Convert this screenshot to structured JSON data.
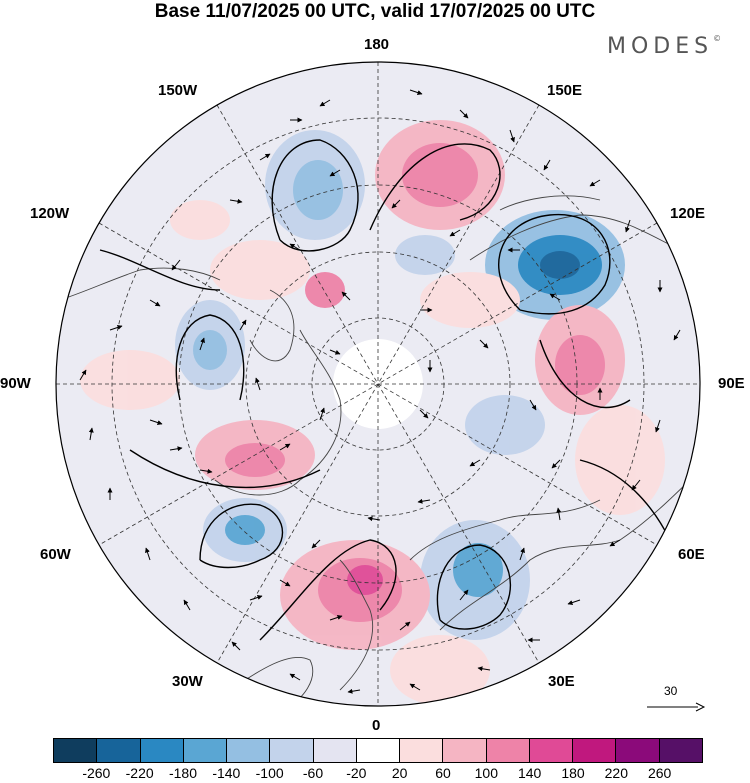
{
  "title": "Base 11/07/2025 00 UTC, valid 17/07/2025 00 UTC",
  "logo": "MODES",
  "logo_mark": "©",
  "longitude_labels": {
    "top": "180",
    "bottom": "0",
    "left": "90W",
    "right": "90E",
    "upper_left_1": "150W",
    "upper_left_2": "120W",
    "upper_right_1": "150E",
    "upper_right_2": "120E",
    "lower_left_1": "60W",
    "lower_left_2": "30W",
    "lower_right_1": "60E",
    "lower_right_2": "30E"
  },
  "vector_scale": {
    "label": "30"
  },
  "colorbar": {
    "colors": [
      "#0f3d5e",
      "#17649a",
      "#2a88c2",
      "#5aa6d3",
      "#94bfe2",
      "#c3d3eb",
      "#e4e4f1",
      "#ffffff",
      "#fbdede",
      "#f5b5c3",
      "#ee83a8",
      "#e04a96",
      "#c0187e",
      "#8b0a7a",
      "#561067"
    ],
    "ticks": [
      "-260",
      "-220",
      "-180",
      "-140",
      "-100",
      "-60",
      "-20",
      "20",
      "60",
      "100",
      "140",
      "180",
      "220",
      "260"
    ]
  }
}
